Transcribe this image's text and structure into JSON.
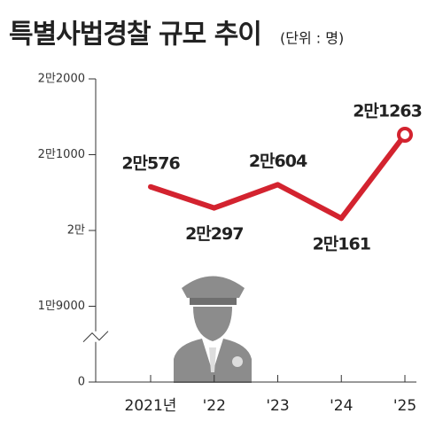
{
  "chart_data": {
    "type": "line",
    "title": "특별사법경찰 규모 추이",
    "subtitle": "(단위 : 명)",
    "categories": [
      "2021년",
      "'22",
      "'23",
      "'24",
      "'25"
    ],
    "series": [
      {
        "name": null,
        "color": "#d3232f",
        "values": [
          20576,
          20297,
          20604,
          20161,
          21263
        ],
        "value_labels": [
          "2만576",
          "2만297",
          "2만604",
          "2만161",
          "2만1263"
        ]
      }
    ],
    "ylim": [
      0,
      22000
    ],
    "yticks": [
      0,
      {
        "value": 19000,
        "label": "1만9000"
      },
      {
        "value": 20000,
        "label": "2만"
      },
      {
        "value": 21000,
        "label": "2만1000"
      },
      {
        "value": 22000,
        "label": "2만2000"
      }
    ],
    "axis_break": true
  }
}
